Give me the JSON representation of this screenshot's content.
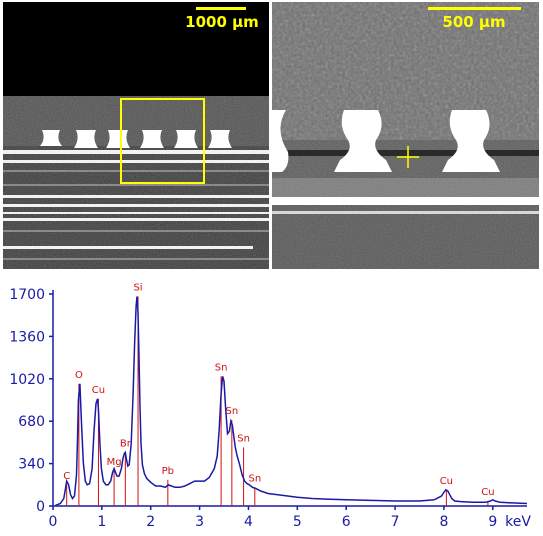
{
  "micrographs": {
    "left_scale_label": "1000 µm",
    "right_scale_label": "500 µm",
    "overlay_color": "#ffff00"
  },
  "chart_data": {
    "type": "line",
    "title": "",
    "xlabel": "keV",
    "ylabel": "",
    "xlim": [
      0,
      9.7
    ],
    "ylim": [
      0,
      1700
    ],
    "x_ticks": [
      0,
      1,
      2,
      3,
      4,
      5,
      6,
      7,
      8,
      9
    ],
    "y_ticks": [
      0,
      340,
      680,
      1020,
      1360,
      1700
    ],
    "series_color": "#1a1aa6",
    "marker_color": "#d01010",
    "series": [
      {
        "x": [
          0.05,
          0.15,
          0.22,
          0.26,
          0.28,
          0.32,
          0.36,
          0.4,
          0.44,
          0.48,
          0.5,
          0.52,
          0.55,
          0.58,
          0.62,
          0.66,
          0.7,
          0.75,
          0.8,
          0.84,
          0.88,
          0.91,
          0.93,
          0.96,
          0.99,
          1.03,
          1.08,
          1.13,
          1.18,
          1.22,
          1.25,
          1.28,
          1.31,
          1.35,
          1.4,
          1.43,
          1.46,
          1.48,
          1.5,
          1.53,
          1.56,
          1.6,
          1.64,
          1.67,
          1.7,
          1.72,
          1.74,
          1.76,
          1.78,
          1.8,
          1.83,
          1.87,
          1.92,
          2.0,
          2.1,
          2.2,
          2.3,
          2.36,
          2.42,
          2.5,
          2.6,
          2.7,
          2.8,
          2.9,
          3.0,
          3.1,
          3.2,
          3.3,
          3.36,
          3.4,
          3.44,
          3.47,
          3.5,
          3.53,
          3.57,
          3.61,
          3.64,
          3.67,
          3.7,
          3.73,
          3.77,
          3.82,
          3.87,
          3.92,
          3.97,
          4.02,
          4.08,
          4.15,
          4.25,
          4.4,
          4.6,
          4.8,
          5.0,
          5.3,
          5.6,
          6.0,
          6.5,
          7.0,
          7.5,
          7.8,
          7.95,
          8.0,
          8.04,
          8.08,
          8.12,
          8.16,
          8.22,
          8.35,
          8.6,
          8.85,
          8.95,
          9.0,
          9.05,
          9.15,
          9.4,
          9.7
        ],
        "y": [
          5,
          20,
          60,
          150,
          200,
          170,
          90,
          60,
          80,
          250,
          500,
          850,
          980,
          700,
          350,
          200,
          170,
          180,
          300,
          600,
          820,
          860,
          780,
          500,
          300,
          200,
          170,
          170,
          200,
          270,
          300,
          270,
          240,
          240,
          300,
          380,
          420,
          430,
          380,
          320,
          330,
          500,
          900,
          1300,
          1600,
          1680,
          1550,
          1200,
          800,
          500,
          330,
          260,
          220,
          190,
          160,
          160,
          150,
          170,
          160,
          150,
          150,
          160,
          180,
          200,
          200,
          200,
          230,
          300,
          400,
          600,
          900,
          1040,
          1000,
          800,
          580,
          600,
          680,
          650,
          560,
          470,
          400,
          330,
          250,
          200,
          180,
          170,
          150,
          140,
          120,
          100,
          90,
          80,
          70,
          60,
          55,
          50,
          45,
          40,
          40,
          50,
          80,
          110,
          130,
          120,
          90,
          60,
          40,
          35,
          30,
          30,
          40,
          50,
          40,
          30,
          25,
          20
        ]
      }
    ],
    "peak_markers": [
      {
        "label": "C",
        "x": 0.28,
        "height": 170
      },
      {
        "label": "O",
        "x": 0.53,
        "height": 980
      },
      {
        "label": "Cu",
        "x": 0.93,
        "height": 860
      },
      {
        "label": "Mg",
        "x": 1.25,
        "height": 280
      },
      {
        "label": "Br",
        "x": 1.48,
        "height": 430
      },
      {
        "label": "Si",
        "x": 1.74,
        "height": 1680
      },
      {
        "label": "Pb",
        "x": 2.35,
        "height": 210
      },
      {
        "label": "Sn",
        "x": 3.44,
        "height": 1040
      },
      {
        "label": "Sn",
        "x": 3.66,
        "height": 690
      },
      {
        "label": "Sn",
        "x": 3.9,
        "height": 470
      },
      {
        "label": "Sn",
        "x": 4.13,
        "height": 150
      },
      {
        "label": "Cu",
        "x": 8.05,
        "height": 130
      },
      {
        "label": "Cu",
        "x": 8.9,
        "height": 40
      }
    ]
  }
}
